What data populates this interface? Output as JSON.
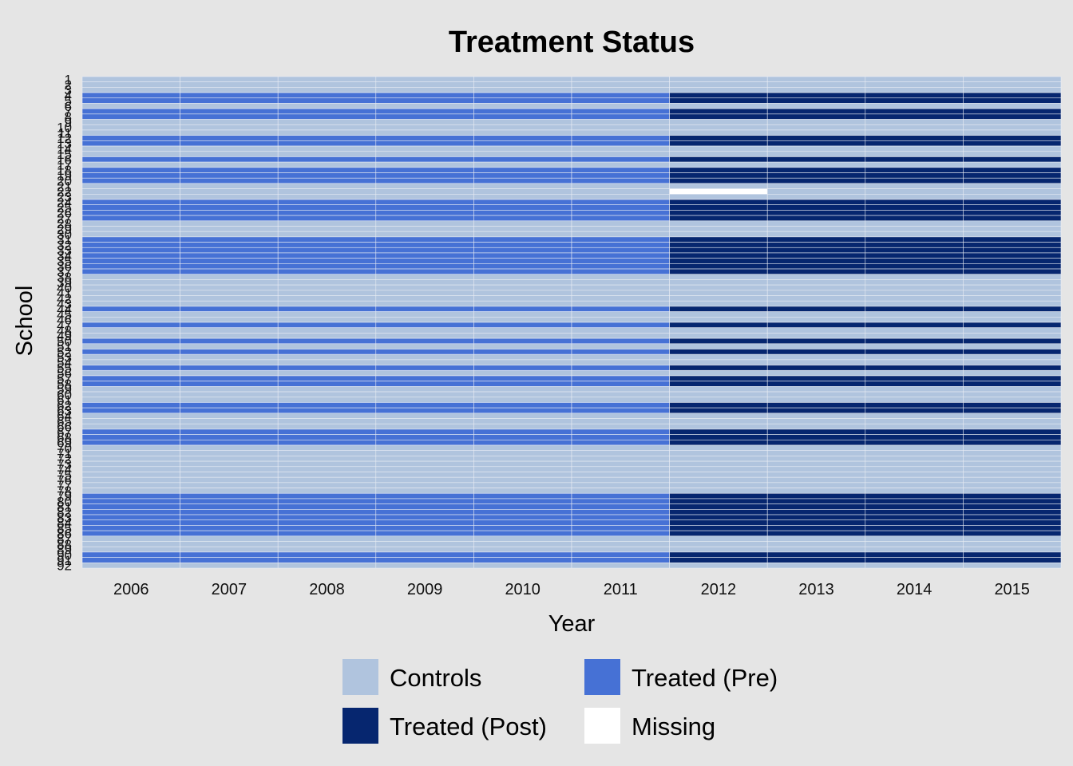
{
  "chart_data": {
    "type": "heatmap",
    "title": "Treatment Status",
    "xlabel": "Year",
    "ylabel": "School",
    "x": [
      "2006",
      "2007",
      "2008",
      "2009",
      "2010",
      "2011",
      "2012",
      "2013",
      "2014",
      "2015"
    ],
    "y": [
      "1",
      "2",
      "3",
      "4",
      "5",
      "6",
      "7",
      "8",
      "9",
      "10",
      "11",
      "12",
      "13",
      "14",
      "15",
      "16",
      "17",
      "18",
      "19",
      "20",
      "21",
      "22",
      "23",
      "24",
      "25",
      "26",
      "27",
      "28",
      "29",
      "30",
      "31",
      "32",
      "33",
      "34",
      "35",
      "36",
      "37",
      "38",
      "39",
      "40",
      "41",
      "42",
      "43",
      "44",
      "45",
      "46",
      "47",
      "48",
      "49",
      "50",
      "51",
      "52",
      "53",
      "54",
      "55",
      "56",
      "57",
      "58",
      "59",
      "60",
      "61",
      "62",
      "63",
      "64",
      "65",
      "66",
      "67",
      "68",
      "69",
      "70",
      "71",
      "72",
      "73",
      "74",
      "75",
      "76",
      "77",
      "78",
      "79",
      "80",
      "81",
      "82",
      "83",
      "84",
      "85",
      "86",
      "87",
      "88",
      "89",
      "90",
      "91",
      "92"
    ],
    "treatment_start_year": "2012",
    "treated_schools": [
      "4",
      "5",
      "7",
      "8",
      "12",
      "13",
      "16",
      "18",
      "19",
      "20",
      "24",
      "25",
      "26",
      "27",
      "31",
      "32",
      "33",
      "34",
      "35",
      "36",
      "37",
      "44",
      "47",
      "50",
      "52",
      "55",
      "57",
      "58",
      "62",
      "63",
      "67",
      "68",
      "69",
      "79",
      "80",
      "81",
      "82",
      "83",
      "84",
      "85",
      "86",
      "90",
      "91"
    ],
    "missing_cells": [
      {
        "school": "22",
        "year": "2012"
      }
    ],
    "categories": [
      "Controls",
      "Treated (Pre)",
      "Treated (Post)",
      "Missing"
    ],
    "colors": {
      "Controls": "#b0c4de",
      "Treated (Pre)": "#4671d5",
      "Treated (Post)": "#06266f",
      "Missing": "#ffffff"
    },
    "legend": {
      "position": "bottom",
      "items": [
        {
          "label": "Controls",
          "color": "#b0c4de"
        },
        {
          "label": "Treated (Pre)",
          "color": "#4671d5"
        },
        {
          "label": "Treated (Post)",
          "color": "#06266f"
        },
        {
          "label": "Missing",
          "color": "#ffffff"
        }
      ]
    },
    "grid": true
  }
}
